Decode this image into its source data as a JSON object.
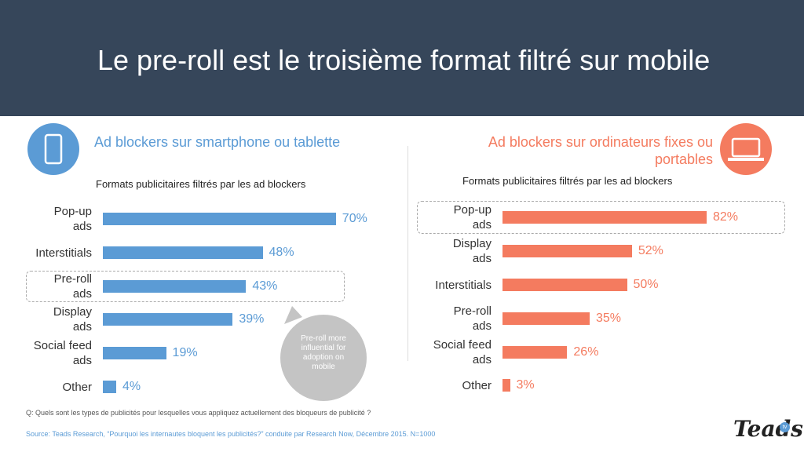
{
  "slide": {
    "title": "Le pre-roll est le troisième format filtré sur mobile",
    "callout": "Pre-roll more\ninfluential for\nadoption on\nmobile",
    "question": "Q:  Quels sont les types de publicités pour lesquelles vous appliquez actuellement des bloqueurs de publicité ?",
    "source": "Source: Teads Research, “Pourquoi les internautes bloquent les publicités?” conduite par Research Now, Décembre 2015. N=1000",
    "logo": "Teads",
    "logo_badge": "tv"
  },
  "chart_data": [
    {
      "type": "bar",
      "title": "Ad blockers sur smartphone ou tablette",
      "subtitle": "Formats publicitaires filtrés par les ad blockers",
      "categories": [
        "Pop-up\nads",
        "Interstitials",
        "Pre-roll\nads",
        "Display\nads",
        "Social feed\nads",
        "Other"
      ],
      "values": [
        70,
        48,
        43,
        39,
        19,
        4
      ],
      "value_labels": [
        "70%",
        "48%",
        "43%",
        "39%",
        "19%",
        "4%"
      ],
      "color": "#5b9bd5"
    },
    {
      "type": "bar",
      "title": "Ad blockers sur ordinateurs fixes ou\nportables",
      "subtitle": "Formats publicitaires filtrés par les ad blockers",
      "categories": [
        "Pop-up\nads",
        "Display\nads",
        "Interstitials",
        "Pre-roll\nads",
        "Social feed\nads",
        "Other"
      ],
      "values": [
        82,
        52,
        50,
        35,
        26,
        3
      ],
      "value_labels": [
        "82%",
        "52%",
        "50%",
        "35%",
        "26%",
        "3%"
      ],
      "color": "#f47b5f"
    }
  ]
}
